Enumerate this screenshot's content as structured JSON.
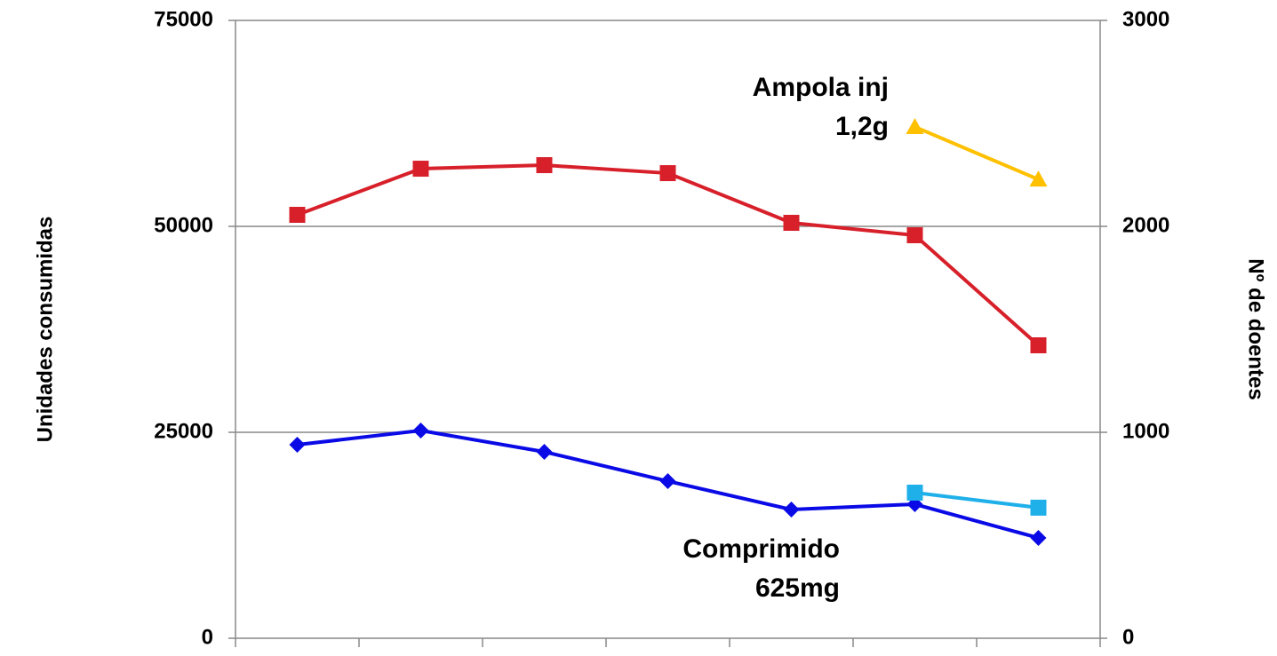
{
  "chart_data": {
    "type": "line",
    "categories": [
      null,
      null,
      null,
      null,
      null,
      null,
      null
    ],
    "y_label": "Unidades consumidas",
    "y2_label": "Nº de doentes",
    "ylim": [
      0,
      75000
    ],
    "yticks": [
      0,
      25000,
      50000,
      75000
    ],
    "y2lim": [
      0,
      3000
    ],
    "y2ticks": [
      0,
      1000,
      2000,
      3000
    ],
    "grid": true,
    "series": [
      {
        "color": "#d7202a",
        "marker": "square",
        "values": [
          51400,
          57000,
          57430,
          56460,
          50430,
          48920,
          35560
        ]
      },
      {
        "color": "#0a0ae6",
        "marker": "diamond",
        "values": [
          23490,
          25210,
          22630,
          19070,
          15620,
          16270,
          12180
        ]
      },
      {
        "color": "#ffc000",
        "marker": "triangle",
        "axis": "y2",
        "values": [
          null,
          null,
          null,
          null,
          null,
          2483,
          2228
        ]
      },
      {
        "color": "#1fb0ea",
        "marker": "square",
        "axis": "y2",
        "values": [
          null,
          null,
          null,
          null,
          null,
          707,
          634
        ]
      }
    ],
    "annotations": [
      {
        "lines": [
          "Ampola inj",
          "1,2g"
        ],
        "color": "#f07000"
      },
      {
        "lines": [
          "Comprimido",
          "625mg"
        ],
        "color": "#003399"
      }
    ]
  }
}
